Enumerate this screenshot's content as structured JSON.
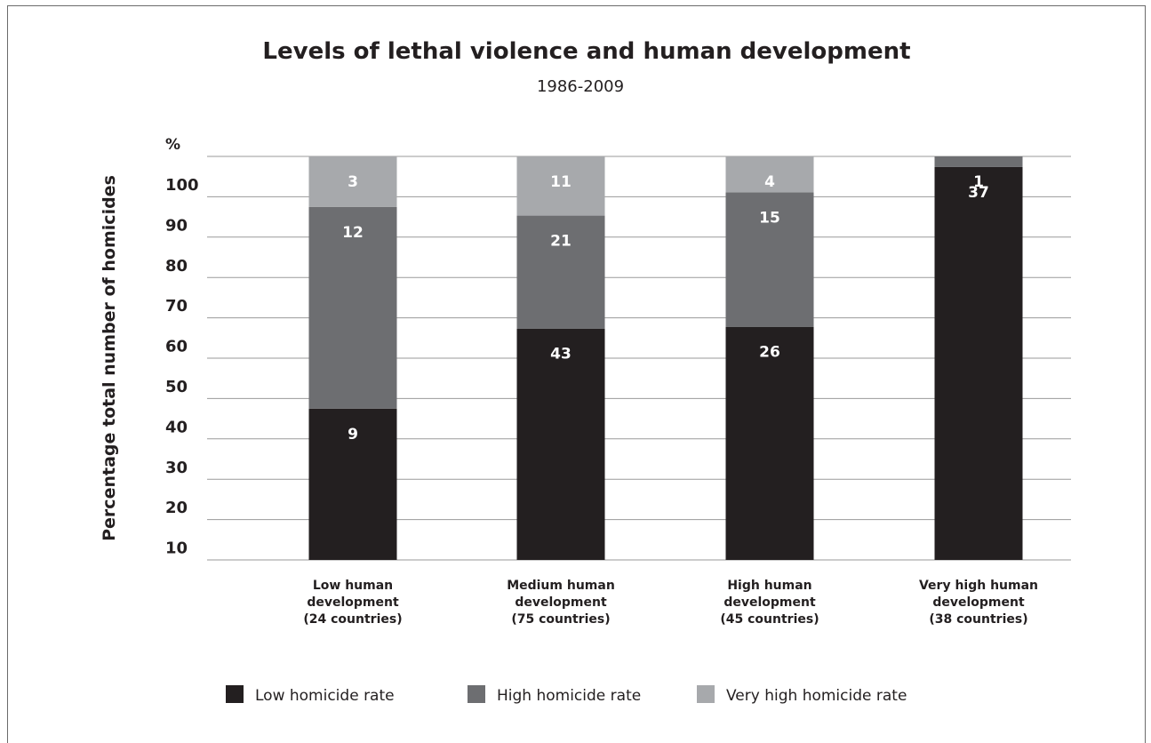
{
  "chart_data": {
    "type": "bar",
    "stacked": true,
    "title": "Levels of lethal violence and human development",
    "subtitle": "1986-2009",
    "ylabel": "Percentage total number of homicides",
    "yunit": "%",
    "yticks": [
      "100",
      "90",
      "80",
      "70",
      "60",
      "50",
      "40",
      "30",
      "20",
      "10"
    ],
    "ylim": [
      0,
      100
    ],
    "grid": true,
    "legend_position": "bottom",
    "categories": [
      [
        "Low human",
        "development",
        "(24 countries)"
      ],
      [
        "Medium human",
        "development",
        "(75 countries)"
      ],
      [
        "High human",
        "development",
        "(45 countries)"
      ],
      [
        "Very high human",
        "development",
        "(38 countries)"
      ]
    ],
    "series": [
      {
        "name": "Low homicide rate",
        "color": "#231f20",
        "values": [
          9,
          43,
          26,
          37
        ]
      },
      {
        "name": "High homicide rate",
        "color": "#6d6e71",
        "values": [
          12,
          21,
          15,
          1
        ]
      },
      {
        "name": "Very high homicide rate",
        "color": "#a7a9ac",
        "values": [
          3,
          11,
          4,
          0
        ]
      }
    ]
  }
}
